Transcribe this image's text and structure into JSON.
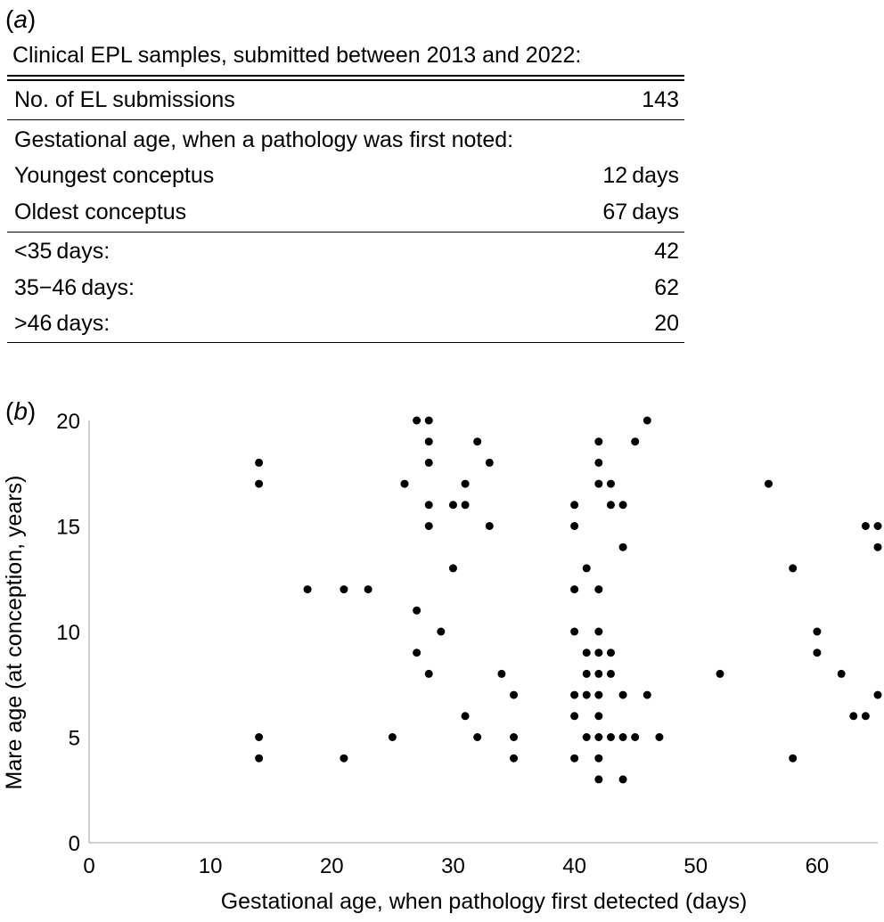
{
  "panel_a": {
    "label_open": "(",
    "label_letter": "a",
    "label_close": ")",
    "title": "Clinical EPL samples, submitted between 2013 and 2022:",
    "rows": [
      {
        "label": "No. of EL submissions",
        "value": "143"
      },
      {
        "label": "Gestational age, when a pathology was first noted:",
        "value": ""
      },
      {
        "label": "Youngest conceptus",
        "value": "12 days"
      },
      {
        "label": "Oldest conceptus",
        "value": "67 days"
      },
      {
        "label": "<35 days:",
        "value": "42"
      },
      {
        "label": "35−46 days:",
        "value": "62"
      },
      {
        "label": ">46 days:",
        "value": "20"
      }
    ]
  },
  "panel_b": {
    "label_open": "(",
    "label_letter": "b",
    "label_close": ")"
  },
  "chart_data": {
    "type": "scatter",
    "title": "",
    "xlabel": "Gestational age, when pathology first detected (days)",
    "ylabel": "Mare age (at conception, years)",
    "xlim": [
      0,
      65
    ],
    "ylim": [
      0,
      20
    ],
    "xticks": [
      0,
      10,
      20,
      30,
      40,
      50,
      60
    ],
    "yticks": [
      0,
      5,
      10,
      15,
      20
    ],
    "grid": false,
    "marker_color": "#000000",
    "points": [
      [
        14,
        18
      ],
      [
        14,
        17
      ],
      [
        14,
        5
      ],
      [
        14,
        4
      ],
      [
        18,
        12
      ],
      [
        21,
        12
      ],
      [
        21,
        4
      ],
      [
        23,
        12
      ],
      [
        25,
        5
      ],
      [
        26,
        17
      ],
      [
        27,
        20
      ],
      [
        27,
        11
      ],
      [
        27,
        9
      ],
      [
        28,
        20
      ],
      [
        28,
        19
      ],
      [
        28,
        18
      ],
      [
        28,
        16
      ],
      [
        28,
        15
      ],
      [
        28,
        8
      ],
      [
        29,
        10
      ],
      [
        30,
        16
      ],
      [
        30,
        13
      ],
      [
        31,
        17
      ],
      [
        31,
        16
      ],
      [
        31,
        6
      ],
      [
        32,
        19
      ],
      [
        32,
        5
      ],
      [
        33,
        18
      ],
      [
        33,
        15
      ],
      [
        34,
        8
      ],
      [
        35,
        7
      ],
      [
        35,
        5
      ],
      [
        35,
        4
      ],
      [
        40,
        16
      ],
      [
        40,
        15
      ],
      [
        40,
        12
      ],
      [
        40,
        10
      ],
      [
        40,
        7
      ],
      [
        40,
        6
      ],
      [
        40,
        4
      ],
      [
        41,
        13
      ],
      [
        41,
        9
      ],
      [
        41,
        8
      ],
      [
        41,
        7
      ],
      [
        41,
        5
      ],
      [
        42,
        19
      ],
      [
        42,
        18
      ],
      [
        42,
        17
      ],
      [
        42,
        12
      ],
      [
        42,
        10
      ],
      [
        42,
        9
      ],
      [
        42,
        8
      ],
      [
        42,
        7
      ],
      [
        42,
        6
      ],
      [
        42,
        5
      ],
      [
        42,
        4
      ],
      [
        42,
        3
      ],
      [
        43,
        17
      ],
      [
        43,
        16
      ],
      [
        43,
        9
      ],
      [
        43,
        8
      ],
      [
        43,
        5
      ],
      [
        44,
        16
      ],
      [
        44,
        14
      ],
      [
        44,
        7
      ],
      [
        44,
        5
      ],
      [
        44,
        3
      ],
      [
        45,
        19
      ],
      [
        45,
        5
      ],
      [
        46,
        20
      ],
      [
        46,
        7
      ],
      [
        47,
        5
      ],
      [
        52,
        8
      ],
      [
        56,
        17
      ],
      [
        58,
        13
      ],
      [
        58,
        4
      ],
      [
        60,
        10
      ],
      [
        60,
        9
      ],
      [
        62,
        8
      ],
      [
        63,
        6
      ],
      [
        64,
        15
      ],
      [
        64,
        6
      ],
      [
        65,
        15
      ],
      [
        65,
        14
      ],
      [
        65,
        7
      ]
    ]
  }
}
